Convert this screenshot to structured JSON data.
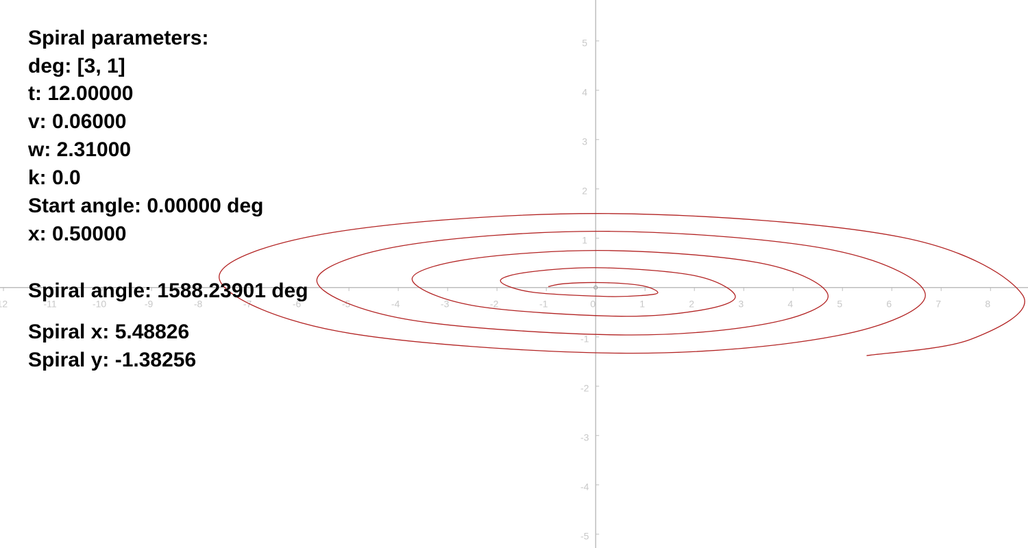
{
  "panel": {
    "lines": [
      "Spiral parameters:",
      "deg: [3, 1]",
      "t: 12.00000",
      "v: 0.06000",
      "w: 2.31000",
      "k: 0.0",
      "Start angle: 0.00000 deg",
      "x: 0.50000",
      "Spiral angle: 1588.23901 deg",
      "Spiral x: 5.48826",
      "Spiral y: -1.38256"
    ]
  },
  "chart_data": {
    "type": "line",
    "x": [
      -0.96,
      -0.63,
      0.15,
      0.93,
      1.26,
      0.95,
      0.2,
      -1.31,
      -1.93,
      -1.31,
      0.2,
      2.06,
      2.83,
      2.12,
      0.4,
      -2.51,
      -3.72,
      -2.54,
      0.3,
      3.42,
      4.71,
      3.48,
      0.5,
      -3.85,
      -5.65,
      -3.91,
      0.3,
      4.81,
      6.68,
      4.87,
      0.5,
      -5.25,
      -7.63,
      -5.31,
      0.3,
      6.2,
      8.65,
      7.6,
      5.49
    ],
    "values": [
      0.02,
      0.08,
      0.1,
      0.04,
      -0.1,
      -0.16,
      -0.18,
      -0.09,
      0.14,
      0.32,
      0.4,
      0.23,
      -0.18,
      -0.46,
      -0.58,
      -0.36,
      0.17,
      0.58,
      0.75,
      0.48,
      -0.17,
      -0.73,
      -0.96,
      -0.64,
      0.14,
      0.85,
      1.14,
      0.76,
      -0.15,
      -0.98,
      -1.33,
      -0.88,
      0.21,
      1.12,
      1.5,
      1.02,
      -0.15,
      -1.05,
      -1.38
    ],
    "color": "#b22222",
    "xlim": [
      -12.07,
      8.76
    ],
    "ylim": [
      -5.28,
      5.83
    ],
    "xticks": [
      -12,
      -11,
      -10,
      -9,
      -8,
      -7,
      -6,
      -5,
      -4,
      -3,
      -2,
      -1,
      0,
      1,
      2,
      3,
      4,
      5,
      6,
      7,
      8
    ],
    "yticks": [
      -5,
      -4,
      -3,
      -2,
      -1,
      1,
      2,
      3,
      4,
      5
    ]
  }
}
